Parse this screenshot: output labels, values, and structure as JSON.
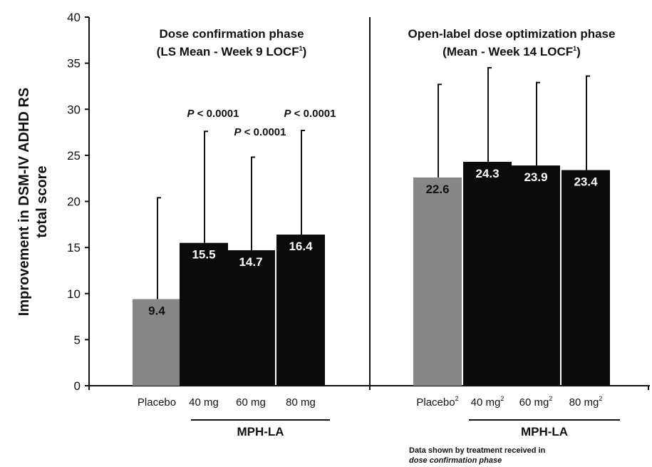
{
  "chart_data": {
    "type": "bar",
    "ylabel_line1": "Improvement in DSM-IV ADHD RS",
    "ylabel_line2": "total score",
    "ylim": [
      0,
      40
    ],
    "yticks": [
      0,
      5,
      10,
      15,
      20,
      25,
      30,
      35,
      40
    ],
    "panels": [
      {
        "title_line1": "Dose confirmation phase",
        "title_line2": "(LS Mean - Week 9 LOCF",
        "title_sup": "1",
        "title_close": ")",
        "categories": [
          {
            "label": "Placebo",
            "sup": ""
          },
          {
            "label": "40 mg",
            "sup": ""
          },
          {
            "label": "60 mg",
            "sup": ""
          },
          {
            "label": "80 mg",
            "sup": ""
          }
        ],
        "values": [
          9.4,
          15.5,
          14.7,
          16.4
        ],
        "value_labels": [
          "9.4",
          "15.5",
          "14.7",
          "16.4"
        ],
        "error_top": [
          20.4,
          27.6,
          24.8,
          27.7
        ],
        "bar_colors": [
          "#878787",
          "#0b0b0b",
          "#0b0b0b",
          "#0b0b0b"
        ],
        "pvalues": [
          "",
          "P < 0.0001",
          "P < 0.0001",
          "P < 0.0001"
        ],
        "group_label": "MPH-LA"
      },
      {
        "title_line1": "Open-label dose optimization phase",
        "title_line2": "(Mean - Week 14 LOCF",
        "title_sup": "1",
        "title_close": ")",
        "categories": [
          {
            "label": "Placebo",
            "sup": "2"
          },
          {
            "label": "40 mg",
            "sup": "2"
          },
          {
            "label": "60 mg",
            "sup": "2"
          },
          {
            "label": "80 mg",
            "sup": "2"
          }
        ],
        "values": [
          22.6,
          24.3,
          23.9,
          23.4
        ],
        "value_labels": [
          "22.6",
          "24.3",
          "23.9",
          "23.4"
        ],
        "error_top": [
          32.7,
          34.5,
          32.9,
          33.6
        ],
        "bar_colors": [
          "#878787",
          "#0b0b0b",
          "#0b0b0b",
          "#0b0b0b"
        ],
        "pvalues": [
          "",
          "",
          "",
          ""
        ],
        "group_label": "MPH-LA"
      }
    ],
    "footnote_line1": "Data shown by treatment received in",
    "footnote_line2": "dose confirmation phase"
  }
}
